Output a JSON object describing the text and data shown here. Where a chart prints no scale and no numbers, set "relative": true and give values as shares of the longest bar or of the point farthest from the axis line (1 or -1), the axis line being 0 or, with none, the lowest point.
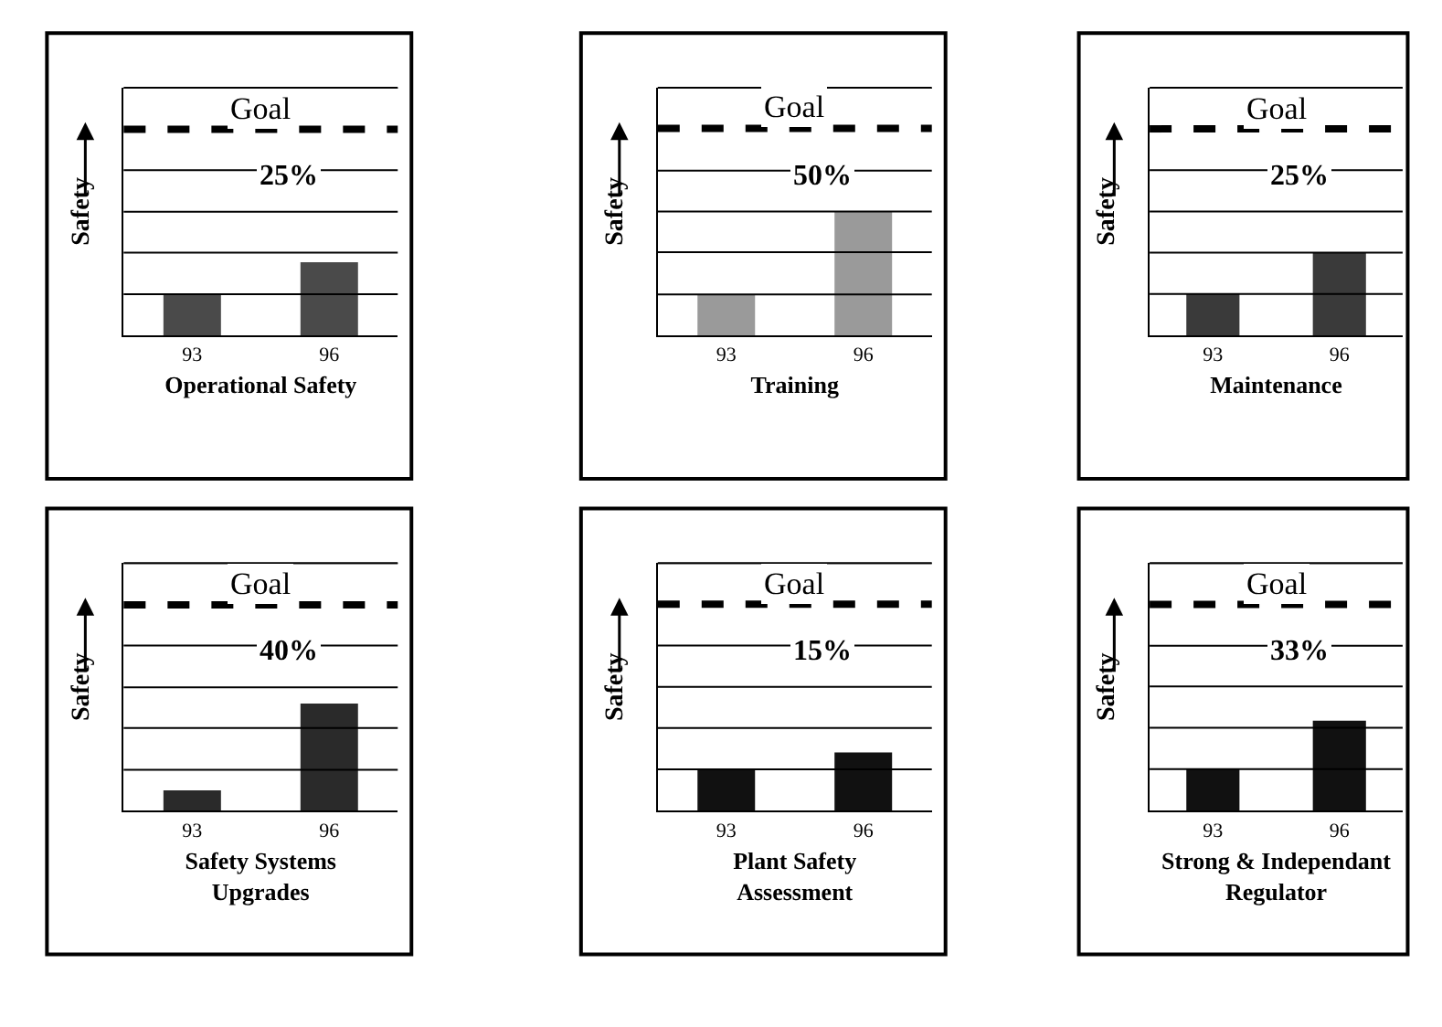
{
  "chart_data": [
    {
      "type": "bar",
      "relative": true,
      "xlabel": "Operational Safety",
      "ylabel": "Safety",
      "categories": [
        "93",
        "96"
      ],
      "values": [
        0.56,
        1
      ],
      "color": "#4a4a4a",
      "ref_lines": [
        {
          "axis": "y",
          "value": 0.56,
          "line_style": "solid"
        },
        {
          "axis": "y",
          "value": 1.13,
          "line_style": "solid"
        },
        {
          "axis": "y",
          "value": 1.69,
          "line_style": "solid"
        },
        {
          "axis": "y",
          "value": 2.26,
          "line_style": "solid"
        },
        {
          "axis": "y",
          "value": 3.39,
          "line_style": "solid"
        },
        {
          "axis": "y",
          "value": 2.82,
          "label": "Goal",
          "line_style": "dashed"
        }
      ],
      "annotations": [
        "25%"
      ]
    },
    {
      "type": "bar",
      "relative": true,
      "xlabel": "Training",
      "ylabel": "Safety",
      "categories": [
        "93",
        "96"
      ],
      "values": [
        0.33,
        1
      ],
      "color": "#9a9a9a",
      "ref_lines": [
        {
          "axis": "y",
          "value": 0.33,
          "line_style": "solid"
        },
        {
          "axis": "y",
          "value": 0.67,
          "line_style": "solid"
        },
        {
          "axis": "y",
          "value": 1,
          "line_style": "solid"
        },
        {
          "axis": "y",
          "value": 1.33,
          "line_style": "solid"
        },
        {
          "axis": "y",
          "value": 2,
          "line_style": "solid"
        },
        {
          "axis": "y",
          "value": 1.67,
          "label": "Goal",
          "line_style": "dashed"
        }
      ],
      "annotations": [
        "50%"
      ]
    },
    {
      "type": "bar",
      "relative": true,
      "xlabel": "Maintenance",
      "ylabel": "Safety",
      "categories": [
        "93",
        "96"
      ],
      "values": [
        0.5,
        1
      ],
      "color": "#3a3a3a",
      "ref_lines": [
        {
          "axis": "y",
          "value": 0.5,
          "line_style": "solid"
        },
        {
          "axis": "y",
          "value": 1,
          "line_style": "solid"
        },
        {
          "axis": "y",
          "value": 1.5,
          "line_style": "solid"
        },
        {
          "axis": "y",
          "value": 2,
          "line_style": "solid"
        },
        {
          "axis": "y",
          "value": 3,
          "line_style": "solid"
        },
        {
          "axis": "y",
          "value": 2.5,
          "label": "Goal",
          "line_style": "dashed"
        }
      ],
      "annotations": [
        "25%"
      ]
    },
    {
      "type": "bar",
      "relative": true,
      "xlabel": "Safety Systems Upgrades",
      "ylabel": "Safety",
      "categories": [
        "93",
        "96"
      ],
      "values": [
        0.19,
        1
      ],
      "color": "#2a2a2a",
      "ref_lines": [
        {
          "axis": "y",
          "value": 0.38,
          "line_style": "solid"
        },
        {
          "axis": "y",
          "value": 0.77,
          "line_style": "solid"
        },
        {
          "axis": "y",
          "value": 1.15,
          "line_style": "solid"
        },
        {
          "axis": "y",
          "value": 1.54,
          "line_style": "solid"
        },
        {
          "axis": "y",
          "value": 2.31,
          "line_style": "solid"
        },
        {
          "axis": "y",
          "value": 1.92,
          "label": "Goal",
          "line_style": "dashed"
        }
      ],
      "annotations": [
        "40%"
      ]
    },
    {
      "type": "bar",
      "relative": true,
      "xlabel": "Plant Safety Assessment",
      "ylabel": "Safety",
      "categories": [
        "93",
        "96"
      ],
      "values": [
        0.71,
        1
      ],
      "color": "#111111",
      "ref_lines": [
        {
          "axis": "y",
          "value": 0.71,
          "line_style": "solid"
        },
        {
          "axis": "y",
          "value": 1.42,
          "line_style": "solid"
        },
        {
          "axis": "y",
          "value": 2.13,
          "line_style": "solid"
        },
        {
          "axis": "y",
          "value": 2.84,
          "line_style": "solid"
        },
        {
          "axis": "y",
          "value": 4.26,
          "line_style": "solid"
        },
        {
          "axis": "y",
          "value": 3.55,
          "label": "Goal",
          "line_style": "dashed"
        }
      ],
      "annotations": [
        "15%"
      ]
    },
    {
      "type": "bar",
      "relative": true,
      "xlabel": "Strong & Independant Regulator",
      "ylabel": "Safety",
      "categories": [
        "93",
        "96"
      ],
      "values": [
        0.46,
        1
      ],
      "color": "#111111",
      "ref_lines": [
        {
          "axis": "y",
          "value": 0.46,
          "line_style": "solid"
        },
        {
          "axis": "y",
          "value": 0.92,
          "line_style": "solid"
        },
        {
          "axis": "y",
          "value": 1.38,
          "line_style": "solid"
        },
        {
          "axis": "y",
          "value": 1.83,
          "line_style": "solid"
        },
        {
          "axis": "y",
          "value": 2.75,
          "line_style": "solid"
        },
        {
          "axis": "y",
          "value": 2.29,
          "label": "Goal",
          "line_style": "dashed"
        }
      ],
      "annotations": [
        "33%"
      ]
    }
  ]
}
